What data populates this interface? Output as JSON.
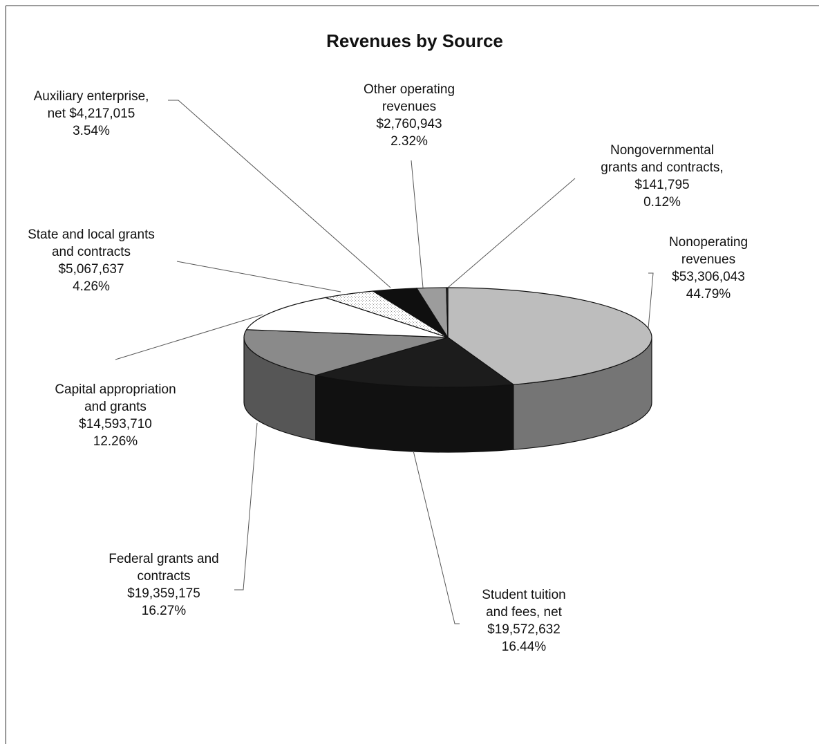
{
  "chart_data": {
    "type": "pie",
    "title": "Revenues by Source",
    "slices": [
      {
        "name": "Nonoperating revenues",
        "value": 53306043,
        "percent": 44.79,
        "value_label": "$53,306,043",
        "percent_label": "44.79%",
        "label_lines": [
          "Nonoperating",
          "revenues"
        ],
        "color": "#bdbdbd"
      },
      {
        "name": "Student tuition and fees, net",
        "value": 19572632,
        "percent": 16.44,
        "value_label": "$19,572,632",
        "percent_label": "16.44%",
        "label_lines": [
          "Student tuition",
          "and fees, net"
        ],
        "color": "#1c1c1c"
      },
      {
        "name": "Federal grants and contracts",
        "value": 19359175,
        "percent": 16.27,
        "value_label": "$19,359,175",
        "percent_label": "16.27%",
        "label_lines": [
          "Federal grants and",
          "contracts"
        ],
        "color": "#8a8a8a"
      },
      {
        "name": "Capital appropriation and grants",
        "value": 14593710,
        "percent": 12.26,
        "value_label": "$14,593,710",
        "percent_label": "12.26%",
        "label_lines": [
          "Capital appropriation",
          "and grants"
        ],
        "color": "#ffffff"
      },
      {
        "name": "State and local grants and contracts",
        "value": 5067637,
        "percent": 4.26,
        "value_label": "$5,067,637",
        "percent_label": "4.26%",
        "label_lines": [
          "State and local grants",
          "and contracts"
        ],
        "color": "#eaeaea"
      },
      {
        "name": "Auxiliary enterprise, net",
        "value": 4217015,
        "percent": 3.54,
        "value_label": "net  $4,217,015",
        "percent_label": "3.54%",
        "label_lines": [
          "Auxiliary enterprise,"
        ],
        "color": "#0f0f0f"
      },
      {
        "name": "Other operating revenues",
        "value": 2760943,
        "percent": 2.32,
        "value_label": "$2,760,943",
        "percent_label": "2.32%",
        "label_lines": [
          "Other operating",
          "revenues"
        ],
        "color": "#9c9c9c"
      },
      {
        "name": "Nongovernmental grants and contracts",
        "value": 141795,
        "percent": 0.12,
        "value_label": "$141,795",
        "percent_label": "0.12%",
        "label_lines": [
          "Nongovernmental",
          "grants and contracts,"
        ],
        "color": "#333333"
      }
    ],
    "legend": "none",
    "style": "3d-pie"
  }
}
